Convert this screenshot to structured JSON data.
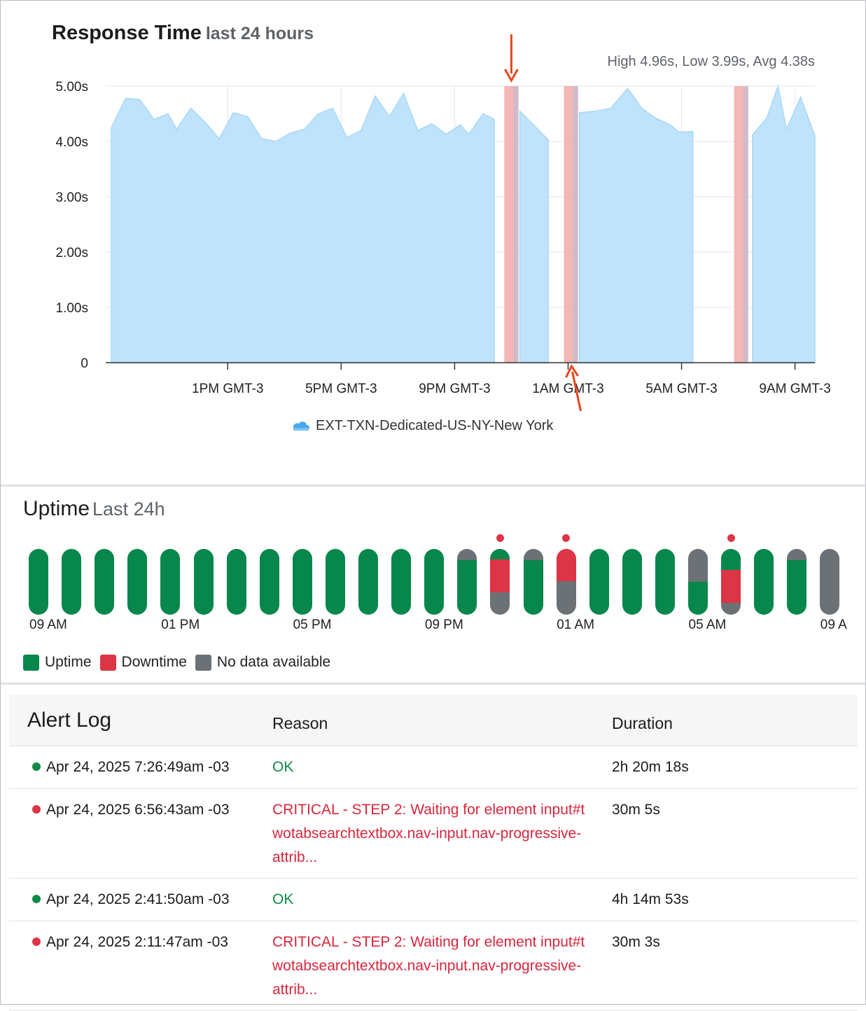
{
  "response_time": {
    "title": "Response Time",
    "subtitle": "last 24 hours",
    "stats": "High 4.96s, Low 3.99s, Avg 4.38s",
    "legend_label": "EXT-TXN-Dedicated-US-NY-New York",
    "colors": {
      "area": "#bfe3fb",
      "area_line": "#a8d8f7",
      "downtime": "#f2b1b0",
      "arrow": "#e8461e",
      "grid": "#e6e6e6"
    }
  },
  "chart_data": {
    "type": "area",
    "y_unit": "s",
    "ylim": [
      0,
      5
    ],
    "y_ticks": [
      "0",
      "1.00s",
      "2.00s",
      "3.00s",
      "4.00s",
      "5.00s"
    ],
    "x_ticks": [
      "1PM GMT-3",
      "5PM GMT-3",
      "9PM GMT-3",
      "1AM GMT-3",
      "5AM GMT-3",
      "9AM GMT-3"
    ],
    "x_hours_note": "x values in hours elapsed on the chart's own time axis; x_tick_positions give hour values of each tick label",
    "x_tick_positions": [
      4.1,
      8.1,
      12.1,
      16.1,
      20.1,
      24.1
    ],
    "x_range": [
      -0.2,
      24.8
    ],
    "series": [
      {
        "name": "EXT-TXN-Dedicated-US-NY-New York",
        "segments": [
          [
            [
              0.0,
              4.25
            ],
            [
              0.5,
              4.78
            ],
            [
              1.0,
              4.76
            ],
            [
              1.5,
              4.4
            ],
            [
              2.0,
              4.5
            ],
            [
              2.3,
              4.22
            ],
            [
              2.8,
              4.6
            ],
            [
              3.3,
              4.35
            ],
            [
              3.8,
              4.05
            ],
            [
              4.3,
              4.52
            ],
            [
              4.8,
              4.45
            ],
            [
              5.3,
              4.05
            ],
            [
              5.8,
              4.0
            ],
            [
              6.3,
              4.15
            ],
            [
              6.8,
              4.22
            ],
            [
              7.3,
              4.5
            ],
            [
              7.8,
              4.6
            ],
            [
              8.3,
              4.07
            ],
            [
              8.8,
              4.2
            ],
            [
              9.3,
              4.82
            ],
            [
              9.8,
              4.45
            ],
            [
              10.3,
              4.87
            ],
            [
              10.8,
              4.2
            ],
            [
              11.3,
              4.32
            ],
            [
              11.8,
              4.13
            ],
            [
              12.3,
              4.3
            ],
            [
              12.6,
              4.13
            ],
            [
              13.1,
              4.5
            ],
            [
              13.5,
              4.4
            ]
          ],
          [
            [
              14.4,
              4.55
            ],
            [
              15.4,
              4.03
            ]
          ],
          [
            [
              16.5,
              4.52
            ],
            [
              17.1,
              4.55
            ],
            [
              17.6,
              4.6
            ],
            [
              18.2,
              4.96
            ],
            [
              18.7,
              4.6
            ],
            [
              19.2,
              4.42
            ],
            [
              19.7,
              4.3
            ],
            [
              20.0,
              4.17
            ],
            [
              20.5,
              4.18
            ]
          ],
          [
            [
              22.6,
              4.12
            ],
            [
              23.1,
              4.42
            ],
            [
              23.5,
              5.0
            ],
            [
              23.8,
              4.22
            ],
            [
              24.3,
              4.8
            ],
            [
              24.8,
              4.1
            ]
          ]
        ]
      }
    ],
    "downtime_bands": [
      [
        13.85,
        14.35
      ],
      [
        15.95,
        16.45
      ],
      [
        21.95,
        22.45
      ]
    ],
    "annotations": [
      "arrow pointing down at first downtime band",
      "arrow pointing up at second downtime band"
    ]
  },
  "uptime": {
    "title": "Uptime",
    "subtitle": "Last 24h",
    "colors": {
      "up": "#07874b",
      "down": "#dc3545",
      "none": "#6c7175"
    },
    "hour_labels": [
      "09 AM",
      "01 PM",
      "05 PM",
      "09 PM",
      "01 AM",
      "05 AM",
      "09 A"
    ],
    "bars": [
      {
        "up": 1.0,
        "down": 0,
        "none": 0,
        "order": [
          "up"
        ],
        "alert": false
      },
      {
        "up": 1.0,
        "down": 0,
        "none": 0,
        "order": [
          "up"
        ],
        "alert": false
      },
      {
        "up": 1.0,
        "down": 0,
        "none": 0,
        "order": [
          "up"
        ],
        "alert": false
      },
      {
        "up": 1.0,
        "down": 0,
        "none": 0,
        "order": [
          "up"
        ],
        "alert": false
      },
      {
        "up": 1.0,
        "down": 0,
        "none": 0,
        "order": [
          "up"
        ],
        "alert": false
      },
      {
        "up": 1.0,
        "down": 0,
        "none": 0,
        "order": [
          "up"
        ],
        "alert": false
      },
      {
        "up": 1.0,
        "down": 0,
        "none": 0,
        "order": [
          "up"
        ],
        "alert": false
      },
      {
        "up": 1.0,
        "down": 0,
        "none": 0,
        "order": [
          "up"
        ],
        "alert": false
      },
      {
        "up": 1.0,
        "down": 0,
        "none": 0,
        "order": [
          "up"
        ],
        "alert": false
      },
      {
        "up": 1.0,
        "down": 0,
        "none": 0,
        "order": [
          "up"
        ],
        "alert": false
      },
      {
        "up": 1.0,
        "down": 0,
        "none": 0,
        "order": [
          "up"
        ],
        "alert": false
      },
      {
        "up": 1.0,
        "down": 0,
        "none": 0,
        "order": [
          "up"
        ],
        "alert": false
      },
      {
        "up": 1.0,
        "down": 0,
        "none": 0,
        "order": [
          "up"
        ],
        "alert": false
      },
      {
        "up": 0.83,
        "down": 0,
        "none": 0.17,
        "order": [
          "none",
          "up"
        ],
        "alert": false
      },
      {
        "up": 0.16,
        "down": 0.5,
        "none": 0.34,
        "order": [
          "up",
          "down",
          "none"
        ],
        "alert": true
      },
      {
        "up": 0.83,
        "down": 0,
        "none": 0.17,
        "order": [
          "none",
          "up"
        ],
        "alert": false
      },
      {
        "up": 0,
        "down": 0.49,
        "none": 0.51,
        "order": [
          "down",
          "none"
        ],
        "alert": true
      },
      {
        "up": 1.0,
        "down": 0,
        "none": 0,
        "order": [
          "up"
        ],
        "alert": false
      },
      {
        "up": 1.0,
        "down": 0,
        "none": 0,
        "order": [
          "up"
        ],
        "alert": false
      },
      {
        "up": 1.0,
        "down": 0,
        "none": 0,
        "order": [
          "up"
        ],
        "alert": false
      },
      {
        "up": 0.5,
        "down": 0,
        "none": 0.5,
        "order": [
          "none",
          "up"
        ],
        "alert": false
      },
      {
        "up": 0.32,
        "down": 0.5,
        "none": 0.18,
        "order": [
          "up",
          "down",
          "none"
        ],
        "alert": true
      },
      {
        "up": 1.0,
        "down": 0,
        "none": 0,
        "order": [
          "up"
        ],
        "alert": false
      },
      {
        "up": 0.83,
        "down": 0,
        "none": 0.17,
        "order": [
          "none",
          "up"
        ],
        "alert": false
      },
      {
        "up": 0,
        "down": 0,
        "none": 1.0,
        "order": [
          "none"
        ],
        "alert": false
      }
    ],
    "legend": {
      "up": "Uptime",
      "down": "Downtime",
      "none": "No data available"
    }
  },
  "alert_log": {
    "title": "Alert Log",
    "reason_header": "Reason",
    "duration_header": "Duration",
    "rows": [
      {
        "status": "ok",
        "time": "Apr 24, 2025 7:26:49am -03",
        "reason": "OK",
        "duration": "2h 20m 18s"
      },
      {
        "status": "critical",
        "time": "Apr 24, 2025 6:56:43am -03",
        "reason": "CRITICAL - STEP 2: Waiting for element input#twotabsearchtextbox.nav-input.nav-progressive-attrib...",
        "duration": "30m 5s"
      },
      {
        "status": "ok",
        "time": "Apr 24, 2025 2:41:50am -03",
        "reason": "OK",
        "duration": "4h 14m 53s"
      },
      {
        "status": "critical",
        "time": "Apr 24, 2025 2:11:47am -03",
        "reason": "CRITICAL - STEP 2: Waiting for element input#twotabsearchtextbox.nav-input.nav-progressive-attrib...",
        "duration": "30m 3s"
      }
    ],
    "colors": {
      "ok": "#0f8a46",
      "critical": "#d7263d",
      "ok_dot": "#0f8a46",
      "critical_dot": "#dc3545"
    }
  }
}
